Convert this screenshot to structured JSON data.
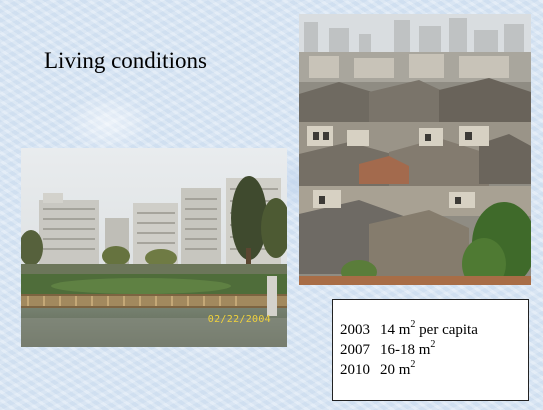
{
  "slide": {
    "title": "Living conditions",
    "stats": [
      {
        "year": "2003",
        "value": "14 m",
        "sup": "2",
        "suffix": " per capita"
      },
      {
        "year": "2007",
        "value": "16-18 m",
        "sup": "2",
        "suffix": ""
      },
      {
        "year": "2010",
        "value": "20 m",
        "sup": "2",
        "suffix": ""
      }
    ],
    "photo_left_datestamp": "02/22/2004"
  },
  "colors": {
    "background": "#d9e6f4",
    "datestamp": "#f0d23c"
  }
}
